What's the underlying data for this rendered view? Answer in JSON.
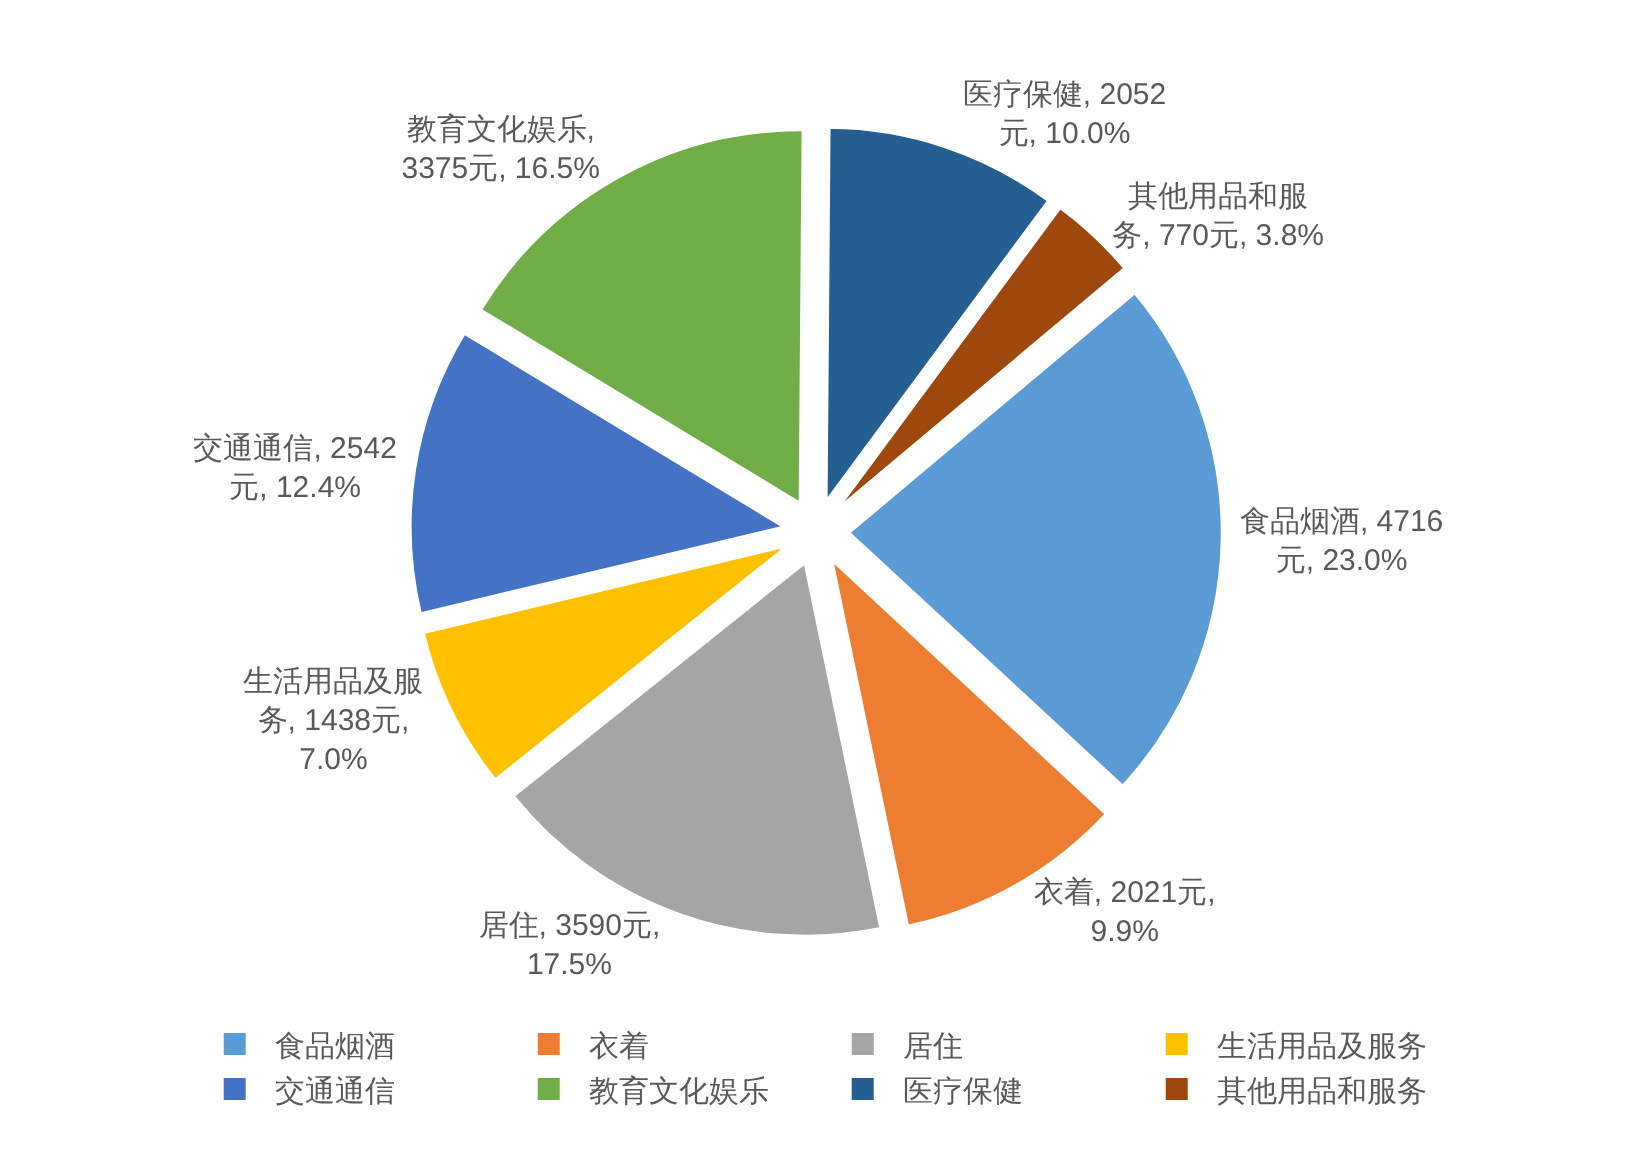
{
  "chart_data": {
    "type": "pie",
    "categories": [
      "食品烟酒",
      "衣着",
      "居住",
      "生活用品及服务",
      "交通通信",
      "教育文化娱乐",
      "医疗保健",
      "其他用品和服务"
    ],
    "values": [
      4716,
      2021,
      3590,
      1438,
      2542,
      3375,
      2052,
      770
    ],
    "colors": [
      "#5b9bd5",
      "#ed7d31",
      "#a5a5a5",
      "#ffc000",
      "#4472c4",
      "#70ad47",
      "#255e91",
      "#9e480e"
    ],
    "value_labels": [
      "食品烟酒, 4716元, 23.0%",
      "衣着, 2021元, 9.9%",
      "居住, 3590元, 17.5%",
      "生活用品及服务, 1438元, 7.0%",
      "交通通信, 2542元, 12.4%",
      "教育文化娱乐, 3375元, 16.5%",
      "医疗保健, 2052元, 10.0%",
      "其他用品和服务, 770元, 3.8%"
    ],
    "legend": "bottom"
  }
}
